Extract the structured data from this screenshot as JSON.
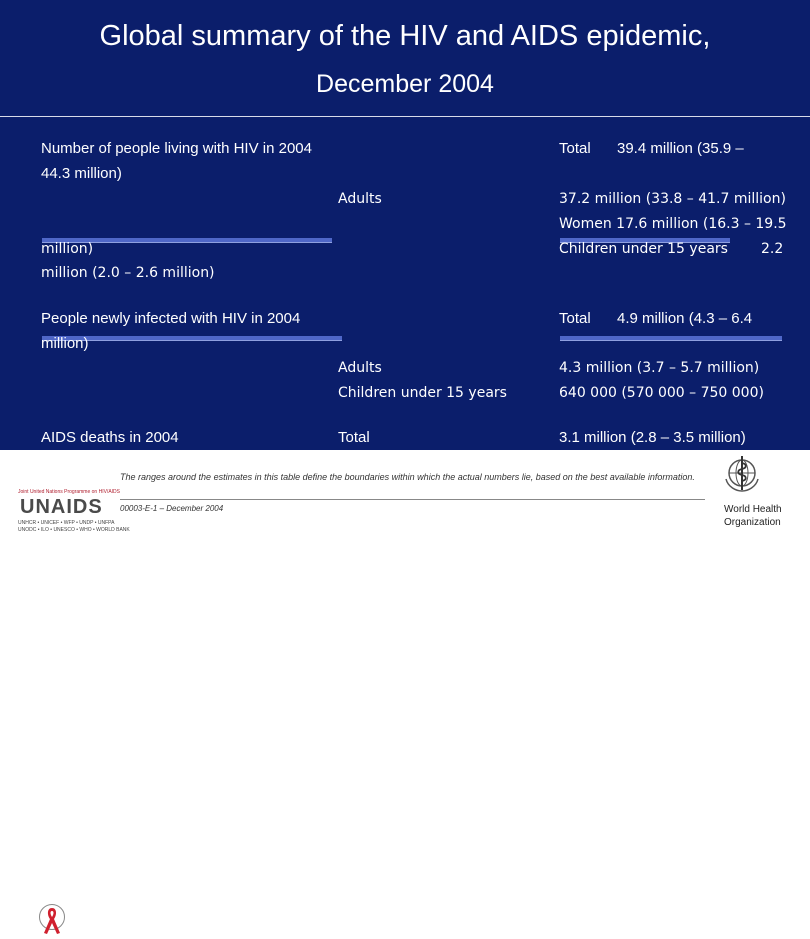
{
  "title": {
    "line1": "Global summary of the HIV and AIDS epidemic,",
    "line2": "December 2004"
  },
  "section_living": {
    "label": "Number of people living with HIV in 2004",
    "total_label": "Total",
    "total_value_part1": "39.4 million (35.9 –",
    "total_value_part2": "44.3 million)",
    "adults_label": "Adults",
    "adults_value": "37.2 million (33.8 – 41.7 million)",
    "women_value_part1": "Women 17.6 million (16.3 – 19.5",
    "women_value_part2": "million)",
    "children_label": "Children under 15 years",
    "children_value_part1": "2.2",
    "children_value_part2": "million (2.0 – 2.6 million)"
  },
  "section_new": {
    "label": "People newly infected with HIV in 2004",
    "total_label": "Total",
    "total_value_part1": "4.9 million (4.3 – 6.4",
    "total_value_part2": "million)",
    "adults_label": "Adults",
    "adults_value": "4.3 million (3.7 – 5.7 million)",
    "children_label": "Children under 15 years",
    "children_value": "640 000 (570 000 – 750 000)"
  },
  "section_deaths": {
    "label": "AIDS deaths in 2004",
    "total_label": "Total",
    "total_value": "3.1 million (2.8 – 3.5 million)"
  },
  "footer": {
    "note": "The ranges around the estimates in this table define the boundaries within which the actual numbers lie, based on the best available information.",
    "doc_code": "00003-E-1 – December 2004",
    "unaids_tagline": "Joint United Nations Programme on HIV/AIDS",
    "unaids_name": "UNAIDS",
    "unaids_cosponsors_1": "UNHCR • UNICEF • WFP • UNDP • UNFPA",
    "unaids_cosponsors_2": "UNODC • ILO • UNESCO • WHO • WORLD BANK",
    "who_line1": "World Health",
    "who_line2": "Organization"
  },
  "colors": {
    "slide_background": "#0b1e6b",
    "text": "#ffffff",
    "bar": "#4f67c8",
    "ribbon": "#d0202e"
  },
  "icons": [
    "red-ribbon-icon",
    "who-emblem-icon"
  ]
}
